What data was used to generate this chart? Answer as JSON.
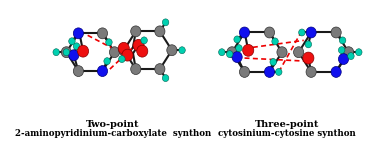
{
  "background_color": "#ffffff",
  "left_label_line1": "Two-point",
  "left_label_line2": "2-aminopyridinium-carboxylate  synthon",
  "right_label_line1": "Three-point",
  "right_label_line2": "cytosinium-cytosine synthon",
  "label_fontsize": 6.2,
  "label_bold_fontsize": 7.0,
  "fig_width": 3.78,
  "fig_height": 1.46,
  "dpi": 100,
  "atom_colors": {
    "C": "#7a7a7a",
    "N": "#1010ee",
    "O": "#ee1010",
    "H": "#00d0b0"
  },
  "bond_color": "#1a1a1a",
  "hbond_color": "#ee0000"
}
